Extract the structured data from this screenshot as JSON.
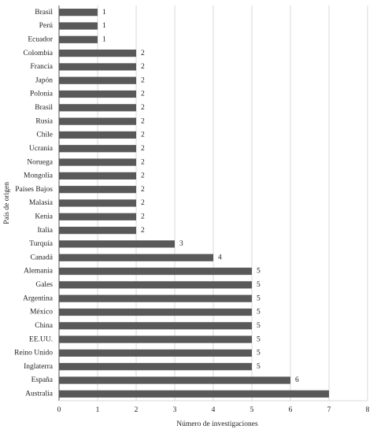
{
  "chart_data": {
    "type": "barh",
    "x_label": "Número de investigaciones",
    "y_label": "País de origen",
    "categories": [
      "Brasil",
      "Perú",
      "Ecuador",
      "Colombia",
      "Francia",
      "Japón",
      "Polonia",
      "Brasil",
      "Rusia",
      "Chile",
      "Ucrania",
      "Noruega",
      "Mongolia",
      "Países Bajos",
      "Malasia",
      "Kenia",
      "Italia",
      "Turquía",
      "Canadá",
      "Alemania",
      "Gales",
      "Argentina",
      "México",
      "China",
      "EE.UU.",
      "Reino Unido",
      "Inglaterra",
      "España",
      "Australia"
    ],
    "values": [
      1,
      1,
      1,
      2,
      2,
      2,
      2,
      2,
      2,
      2,
      2,
      2,
      2,
      2,
      2,
      2,
      2,
      3,
      4,
      5,
      5,
      5,
      5,
      5,
      5,
      5,
      5,
      6,
      7
    ],
    "value_labels": [
      1,
      1,
      1,
      2,
      2,
      2,
      2,
      2,
      2,
      2,
      2,
      2,
      2,
      2,
      2,
      2,
      2,
      3,
      4,
      5,
      5,
      5,
      5,
      5,
      5,
      5,
      5,
      6,
      null
    ],
    "color": "#595959",
    "xlim": [
      0,
      8
    ],
    "xticks": [
      0,
      1,
      2,
      3,
      4,
      5,
      6,
      7,
      8
    ],
    "grid": true
  }
}
